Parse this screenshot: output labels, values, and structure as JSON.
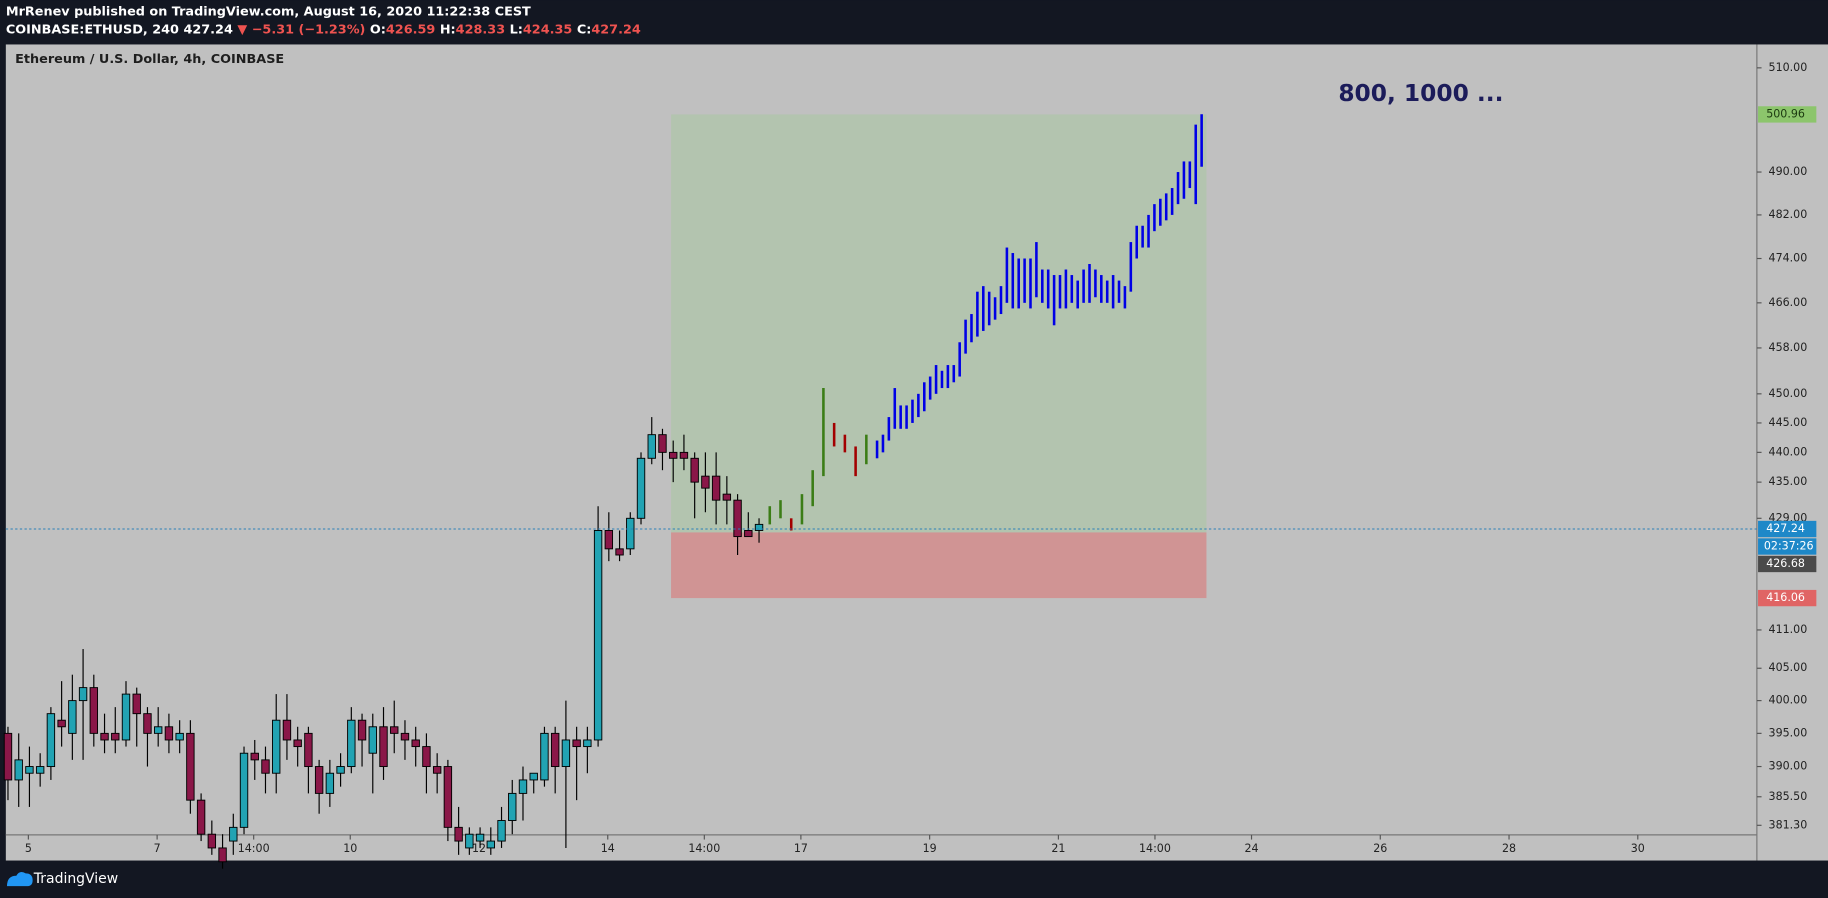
{
  "header": {
    "author_line": "MrRenev published on TradingView.com, August 16, 2020 11:22:38 CEST",
    "symbol": "COINBASE:ETHUSD, 240",
    "last": "427.24",
    "arrow": "▼",
    "change": "−5.31 (−1.23%)",
    "o_label": "O:",
    "o": "426.59",
    "h_label": "H:",
    "h": "428.33",
    "l_label": "L:",
    "l": "424.35",
    "c_label": "C:",
    "c": "427.24"
  },
  "footer": {
    "brand": "TradingView"
  },
  "chart_data": {
    "type": "candlestick",
    "title": "Ethereum / U.S. Dollar, 4h, COINBASE",
    "annotation": "800, 1000 ...",
    "log": true,
    "up_color": "#22a3b3",
    "down_color": "#8a1748",
    "x": [
      0,
      1,
      2,
      3,
      4,
      5,
      6,
      7,
      8,
      9,
      10,
      11,
      12,
      13,
      14,
      15,
      16,
      17,
      18,
      19,
      20,
      21,
      22,
      23,
      24,
      25,
      26,
      27,
      28,
      29,
      30,
      31,
      32,
      33,
      34,
      35,
      36,
      37,
      38,
      39,
      40,
      41,
      42,
      43,
      44,
      45,
      46,
      47,
      48,
      49,
      50,
      51,
      52,
      53,
      54,
      55,
      56,
      57,
      58,
      59,
      60,
      61,
      62,
      63,
      64,
      65,
      66,
      67,
      68,
      69,
      70
    ],
    "open": [
      395,
      388,
      389,
      389,
      390,
      397,
      395,
      400,
      402,
      395,
      395,
      394,
      401,
      398,
      395,
      396,
      394,
      395,
      385,
      380,
      378,
      379,
      381,
      392,
      391,
      389,
      397,
      394,
      395,
      390,
      386,
      389,
      390,
      397,
      392,
      396,
      396,
      395,
      394,
      393,
      390,
      390,
      381,
      378,
      379,
      378,
      379,
      382,
      386,
      388,
      388,
      395,
      390,
      394,
      393,
      394,
      427,
      424,
      424,
      429,
      439,
      443,
      440,
      440,
      439,
      436,
      436,
      433,
      432,
      427,
      427
    ],
    "high": [
      396,
      395,
      393,
      392,
      399,
      403,
      404,
      408,
      404,
      398,
      399,
      403,
      402,
      399,
      399,
      398,
      397,
      397,
      386,
      382,
      380,
      383,
      393,
      394,
      393,
      401,
      401,
      396,
      396,
      391,
      391,
      392,
      399,
      398,
      398,
      399,
      400,
      397,
      396,
      395,
      392,
      391,
      384,
      381,
      381,
      381,
      384,
      388,
      390,
      389,
      396,
      396,
      400,
      396,
      396,
      431,
      430,
      427,
      430,
      440,
      446,
      444,
      442,
      443,
      440,
      440,
      440,
      436,
      433,
      430,
      429
    ],
    "low": [
      385,
      384,
      384,
      387,
      388,
      393,
      391,
      391,
      393,
      392,
      392,
      393,
      393,
      390,
      393,
      392,
      392,
      383,
      379,
      377,
      375,
      377,
      380,
      388,
      386,
      386,
      391,
      390,
      386,
      383,
      384,
      387,
      389,
      390,
      386,
      388,
      392,
      391,
      390,
      386,
      386,
      379,
      377,
      377,
      378,
      377,
      378,
      380,
      382,
      386,
      387,
      386,
      378,
      385,
      389,
      393,
      422,
      422,
      423,
      428,
      438,
      437,
      435,
      437,
      429,
      430,
      428,
      428,
      423,
      426,
      425
    ],
    "close": [
      388,
      391,
      390,
      390,
      398,
      396,
      400,
      402,
      395,
      394,
      394,
      401,
      398,
      395,
      396,
      394,
      395,
      385,
      380,
      378,
      376,
      381,
      392,
      391,
      389,
      397,
      394,
      393,
      390,
      386,
      389,
      390,
      397,
      394,
      396,
      390,
      395,
      394,
      393,
      390,
      389,
      381,
      379,
      380,
      380,
      379,
      382,
      386,
      388,
      389,
      395,
      390,
      394,
      393,
      394,
      427,
      424,
      423,
      429,
      439,
      443,
      440,
      439,
      439,
      435,
      434,
      432,
      432,
      426,
      426,
      428
    ],
    "bar_groups": [
      {
        "color": "#3b7d16",
        "x": [
          71,
          72,
          74,
          75,
          76,
          80
        ],
        "low": [
          428,
          429,
          428,
          431,
          436,
          438
        ],
        "high": [
          431,
          432,
          433,
          437,
          451,
          443
        ]
      },
      {
        "color": "#a30000",
        "x": [
          73,
          77,
          78,
          79
        ],
        "low": [
          427,
          441,
          440,
          436
        ],
        "high": [
          429,
          445,
          443,
          441
        ]
      },
      {
        "color": "#0000e6",
        "x": [
          81,
          81.55,
          82.1,
          82.65,
          83.2,
          83.75,
          84.3,
          84.85,
          85.4,
          85.95,
          86.5,
          87.05,
          87.6,
          88.15,
          88.7,
          89.25,
          89.8,
          90.35,
          90.9,
          91.45,
          92,
          92.55,
          93.1,
          93.65,
          94.2,
          94.75,
          95.3,
          95.85,
          96.4,
          96.95,
          97.5,
          98.05,
          98.6,
          99.15,
          99.7,
          100.25,
          100.8,
          101.35,
          101.9,
          102.45,
          103,
          103.55,
          104.1,
          104.65,
          105.2,
          105.75,
          106.3,
          106.85,
          107.4,
          107.95,
          108.5,
          109.05,
          109.6,
          110.15,
          110.7,
          111.25
        ],
        "low": [
          439,
          440,
          442,
          444,
          444,
          444,
          445,
          446,
          447,
          449,
          450,
          451,
          451,
          452,
          453,
          457,
          459,
          460,
          461,
          462,
          463,
          464,
          466,
          465,
          465,
          466,
          465,
          467,
          466,
          465,
          462,
          465,
          465,
          466,
          465,
          466,
          466,
          467,
          466,
          466,
          465,
          466,
          465,
          468,
          474,
          476,
          476,
          479,
          480,
          481,
          482,
          484,
          485,
          487,
          484,
          491
        ],
        "high": [
          442,
          443,
          446,
          451,
          448,
          448,
          449,
          450,
          452,
          453,
          455,
          454,
          455,
          455,
          459,
          463,
          464,
          468,
          469,
          468,
          467,
          469,
          476,
          475,
          474,
          474,
          474,
          477,
          472,
          472,
          471,
          471,
          472,
          471,
          470,
          472,
          473,
          472,
          471,
          470,
          471,
          470,
          469,
          477,
          480,
          480,
          482,
          484,
          485,
          486,
          487,
          490,
          492,
          492,
          499,
          501
        ]
      }
    ],
    "position": {
      "start": 61.8,
      "end": 111.7,
      "entry": 426.68,
      "target": 500.96,
      "stop": 416.06,
      "entry_label": "426.68",
      "target_label": "500.96",
      "stop_label": "416.06"
    },
    "current": {
      "value": 427.24,
      "label": "427.24"
    },
    "countdown": "02:37:26",
    "xlim": [
      -0.2,
      163
    ],
    "ylim": [
      379.9,
      514.6
    ],
    "yticks": [
      {
        "value": 510,
        "label": "510.00"
      },
      {
        "value": 490,
        "label": "490.00"
      },
      {
        "value": 482,
        "label": "482.00"
      },
      {
        "value": 474,
        "label": "474.00"
      },
      {
        "value": 466,
        "label": "466.00"
      },
      {
        "value": 458,
        "label": "458.00"
      },
      {
        "value": 450,
        "label": "450.00"
      },
      {
        "value": 445,
        "label": "445.00"
      },
      {
        "value": 440,
        "label": "440.00"
      },
      {
        "value": 435,
        "label": "435.00"
      },
      {
        "value": 429,
        "label": "429.00"
      },
      {
        "value": 411,
        "label": "411.00"
      },
      {
        "value": 405,
        "label": "405.00"
      },
      {
        "value": 400,
        "label": "400.00"
      },
      {
        "value": 395,
        "label": "395.00"
      },
      {
        "value": 390,
        "label": "390.00"
      },
      {
        "value": 385.5,
        "label": "385.50"
      },
      {
        "value": 381.3,
        "label": "381.30"
      }
    ],
    "xticks": [
      {
        "value": 1.9,
        "label": "5"
      },
      {
        "value": 13.9,
        "label": "7"
      },
      {
        "value": 22.9,
        "label": "14:00"
      },
      {
        "value": 31.9,
        "label": "10"
      },
      {
        "value": 43.9,
        "label": "12"
      },
      {
        "value": 55.9,
        "label": "14"
      },
      {
        "value": 64.9,
        "label": "14:00"
      },
      {
        "value": 73.9,
        "label": "17"
      },
      {
        "value": 85.9,
        "label": "19"
      },
      {
        "value": 97.9,
        "label": "21"
      },
      {
        "value": 106.9,
        "label": "14:00"
      },
      {
        "value": 115.9,
        "label": "24"
      },
      {
        "value": 127.9,
        "label": "26"
      },
      {
        "value": 139.9,
        "label": "28"
      },
      {
        "value": 151.9,
        "label": "30"
      }
    ]
  }
}
